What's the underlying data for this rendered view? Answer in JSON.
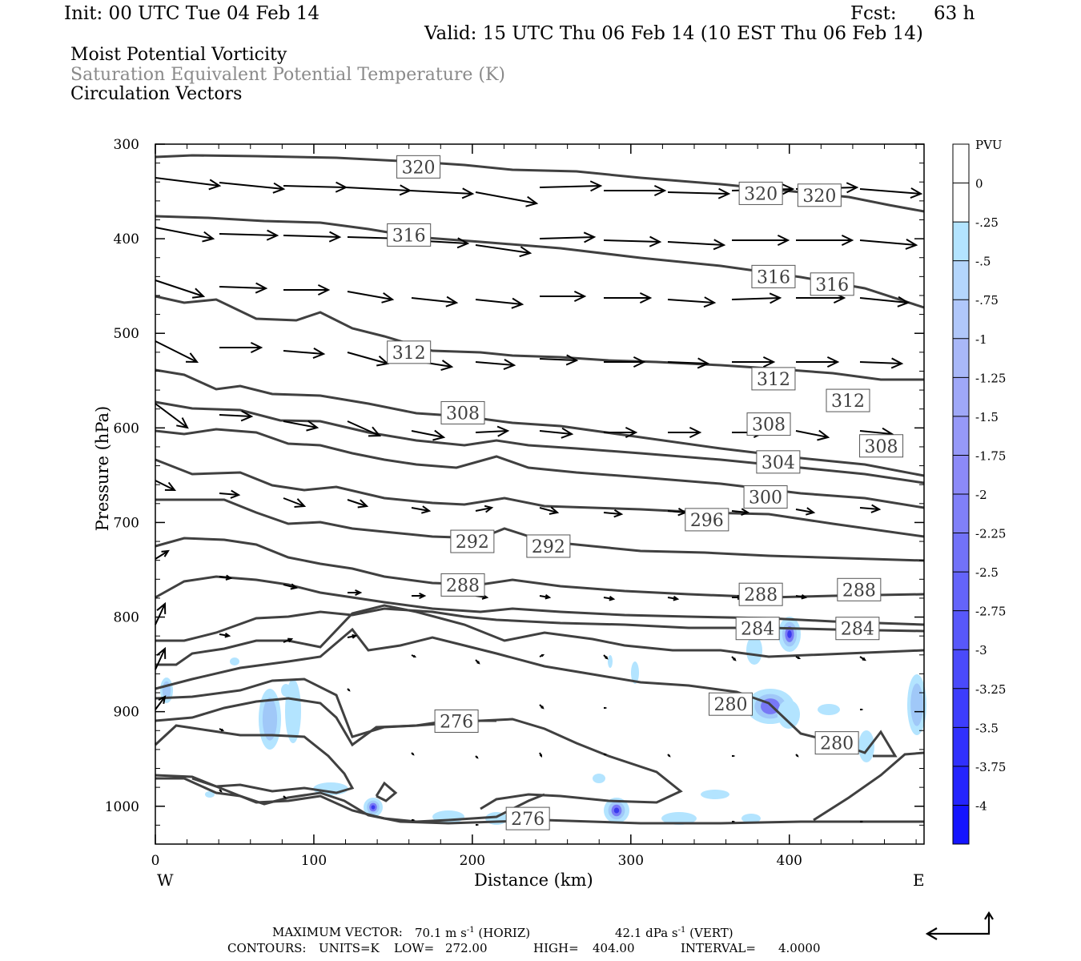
{
  "header": {
    "init": "Init: 00 UTC Tue 04 Feb 14",
    "fcst_label": "Fcst:",
    "fcst_value": "63 h",
    "valid": "Valid: 15 UTC Thu 06 Feb 14 (10 EST Thu 06 Feb 14)",
    "field1": "Moist Potential Vorticity",
    "field2": "Saturation Equivalent Potential Temperature (K)",
    "field3": "Circulation Vectors"
  },
  "footer": {
    "max_vector_label": "MAXIMUM VECTOR:",
    "horiz_value": "70.1 m s",
    "horiz_unit": "(HORIZ)",
    "vert_value": "42.1 dPa s",
    "vert_unit": "(VERT)",
    "exponent": "-1",
    "contours_label": "CONTOURS:",
    "units": "UNITS=K",
    "low_label": "LOW=",
    "low_value": "272.00",
    "high_label": "HIGH=",
    "high_value": "404.00",
    "interval_label": "INTERVAL=",
    "interval_value": "4.0000"
  },
  "colors": {
    "contour": "#404040",
    "vector": "#000000",
    "pv_light": "#a9dcf5",
    "pv_dark": "#2424ff"
  },
  "chart_data": {
    "type": "contour",
    "xlabel": "Distance (km)",
    "ylabel": "Pressure (hPa)",
    "xlim": [
      0,
      485
    ],
    "ylim": [
      1040,
      300
    ],
    "x_ticks": [
      "0",
      "100",
      "200",
      "300",
      "400"
    ],
    "y_ticks": [
      "300",
      "400",
      "500",
      "600",
      "700",
      "800",
      "900",
      "1000"
    ],
    "x_end_labels": {
      "left": "W",
      "right": "E"
    },
    "colorbar": {
      "title": "PVU",
      "labels": [
        "0",
        "-.25",
        "-.5",
        "-.75",
        "-1",
        "-1.25",
        "-1.5",
        "-1.75",
        "-2",
        "-2.25",
        "-2.5",
        "-2.75",
        "-3",
        "-3.25",
        "-3.5",
        "-3.75",
        "-4"
      ],
      "colors": [
        "#ffffff",
        "#ffffff",
        "#b3e4ff",
        "#b4d6fc",
        "#b0c7fa",
        "#a9b8f8",
        "#9fa8f8",
        "#9699f8",
        "#8c8af8",
        "#8080f8",
        "#7272f8",
        "#6464fa",
        "#5858fa",
        "#4a4afb",
        "#3d3dfc",
        "#3030fd",
        "#2424fe",
        "#1414ff"
      ]
    },
    "contour_labels": [
      {
        "text": "320",
        "x": 166,
        "p": 324
      },
      {
        "text": "320",
        "x": 382,
        "p": 352
      },
      {
        "text": "320",
        "x": 419,
        "p": 354
      },
      {
        "text": "316",
        "x": 160,
        "p": 396
      },
      {
        "text": "316",
        "x": 390,
        "p": 440
      },
      {
        "text": "316",
        "x": 427,
        "p": 448
      },
      {
        "text": "312",
        "x": 160,
        "p": 520
      },
      {
        "text": "312",
        "x": 390,
        "p": 548
      },
      {
        "text": "312",
        "x": 437,
        "p": 571
      },
      {
        "text": "308",
        "x": 194,
        "p": 584
      },
      {
        "text": "308",
        "x": 387,
        "p": 596
      },
      {
        "text": "308",
        "x": 458,
        "p": 619
      },
      {
        "text": "304",
        "x": 393,
        "p": 636
      },
      {
        "text": "300",
        "x": 385,
        "p": 673
      },
      {
        "text": "296",
        "x": 348,
        "p": 697
      },
      {
        "text": "292",
        "x": 200,
        "p": 720
      },
      {
        "text": "292",
        "x": 248,
        "p": 725
      },
      {
        "text": "288",
        "x": 194,
        "p": 766
      },
      {
        "text": "288",
        "x": 382,
        "p": 776
      },
      {
        "text": "288",
        "x": 444,
        "p": 771
      },
      {
        "text": "284",
        "x": 380,
        "p": 812
      },
      {
        "text": "284",
        "x": 443,
        "p": 812
      },
      {
        "text": "280",
        "x": 363,
        "p": 892
      },
      {
        "text": "280",
        "x": 430,
        "p": 933
      },
      {
        "text": "276",
        "x": 190,
        "p": 910
      },
      {
        "text": "276",
        "x": 235,
        "p": 1013
      }
    ]
  }
}
